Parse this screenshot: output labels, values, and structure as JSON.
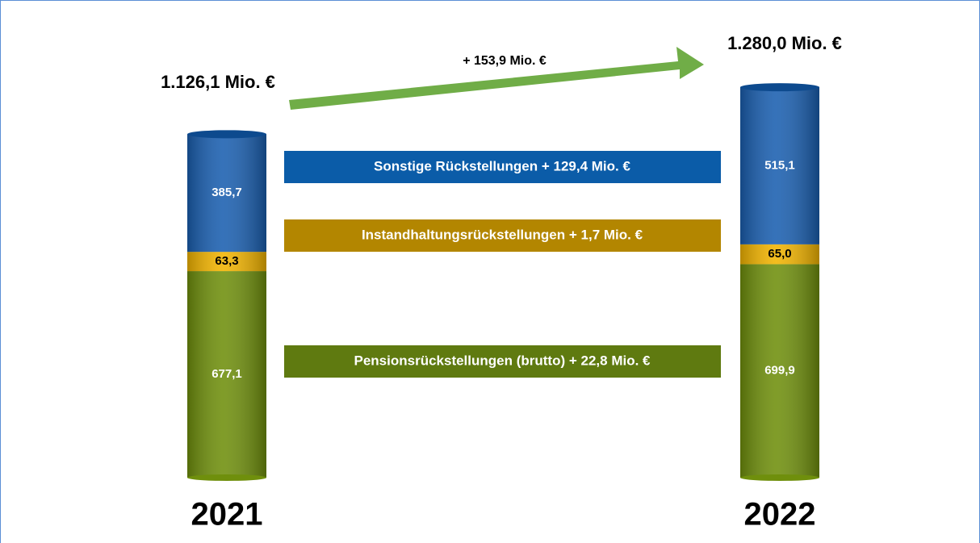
{
  "chart_data": {
    "type": "stacked-bar",
    "categories": [
      "2021",
      "2022"
    ],
    "series": [
      {
        "name": "Pensionsrückstellungen (brutto) + 22,8 Mio. €",
        "color": "#6f8f0c",
        "label_color": "#ffffff",
        "values": [
          677.1,
          699.9
        ],
        "value_labels": [
          "677,1",
          "699,9"
        ]
      },
      {
        "name": "Instandhaltungsrückstellungen + 1,7 Mio. €",
        "color": "#f2b400",
        "label_color": "#000000",
        "values": [
          63.3,
          65.0
        ],
        "value_labels": [
          "63,3",
          "65,0"
        ]
      },
      {
        "name": "Sonstige Rückstellungen + 129,4 Mio. €",
        "color": "#1a5fb0",
        "label_color": "#ffffff",
        "values": [
          385.7,
          515.1
        ],
        "value_labels": [
          "385,7",
          "515,1"
        ]
      }
    ],
    "legend_colors": [
      "#5f7a10",
      "#b38600",
      "#0b5ca8"
    ],
    "totals": [
      "1.126,1 Mio. €",
      "1.280,0 Mio. €"
    ],
    "change_label": "+ 153,9 Mio. €"
  }
}
